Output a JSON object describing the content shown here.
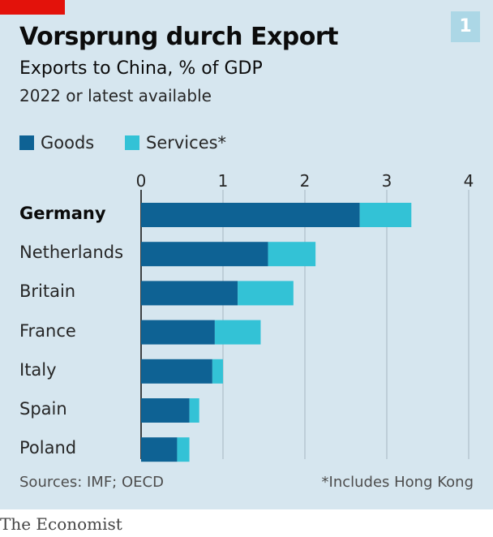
{
  "header": {
    "chart_number": "1",
    "title": "Vorsprung durch Export",
    "subtitle": "Exports to China, % of GDP",
    "note": "2022 or latest available"
  },
  "legend": [
    {
      "label": "Goods",
      "color": "#0e6294"
    },
    {
      "label": "Services*",
      "color": "#33c2d6"
    }
  ],
  "footer": {
    "source": "Sources: IMF; OECD",
    "footnote": "*Includes Hong Kong",
    "brand": "The Economist"
  },
  "colors": {
    "accent": "#e3120b",
    "panel": "#d6e6ef",
    "goods": "#0e6294",
    "services": "#33c2d6",
    "grid": "#aebfc9"
  },
  "chart_data": {
    "type": "bar",
    "orientation": "horizontal",
    "stacked": true,
    "title": "Vorsprung durch Export",
    "subtitle": "Exports to China, % of GDP",
    "categories": [
      "Germany",
      "Netherlands",
      "Britain",
      "France",
      "Italy",
      "Spain",
      "Poland"
    ],
    "highlight": "Germany",
    "series": [
      {
        "name": "Goods",
        "values": [
          2.67,
          1.55,
          1.18,
          0.9,
          0.87,
          0.59,
          0.44
        ]
      },
      {
        "name": "Services*",
        "values": [
          0.63,
          0.58,
          0.68,
          0.56,
          0.13,
          0.12,
          0.15
        ]
      }
    ],
    "xlim": [
      0,
      4
    ],
    "xticks": [
      "0",
      "1",
      "2",
      "3",
      "4"
    ],
    "grid": true,
    "legend_position": "top-left"
  }
}
